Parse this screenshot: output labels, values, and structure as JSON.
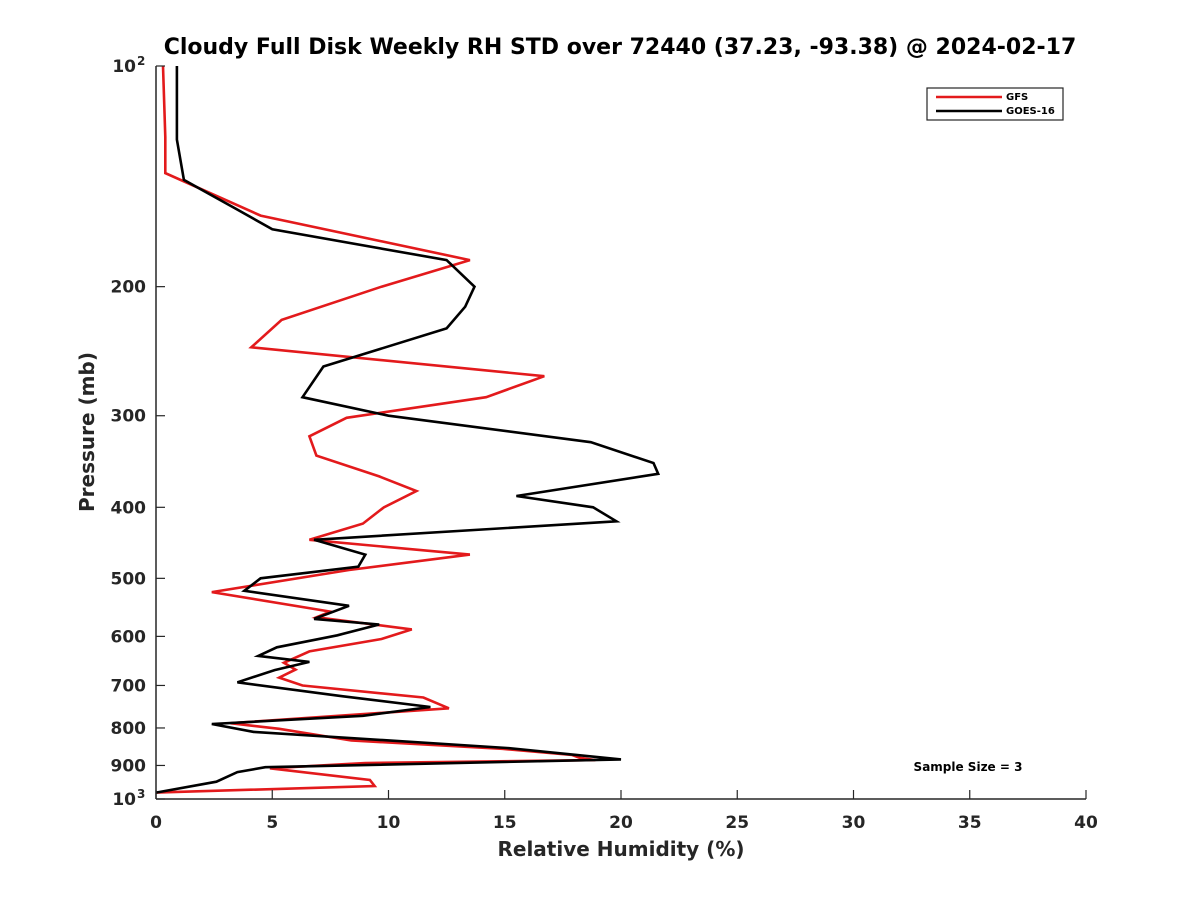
{
  "chart_data": {
    "type": "line",
    "title": "Cloudy Full Disk Weekly RH STD over 72440 (37.23, -93.38) @ 2024-02-17",
    "xlabel": "Relative Humidity (%)",
    "ylabel": "Pressure (mb)",
    "xlim": [
      0,
      40
    ],
    "ylim": [
      100,
      1000
    ],
    "yscale": "log",
    "y_reversed": true,
    "xticks": [
      0,
      5,
      10,
      15,
      20,
      25,
      30,
      35,
      40
    ],
    "yticks": [
      {
        "value": 100,
        "label": "10",
        "sup": "2"
      },
      {
        "value": 200,
        "label": "200",
        "sup": ""
      },
      {
        "value": 300,
        "label": "300",
        "sup": ""
      },
      {
        "value": 400,
        "label": "400",
        "sup": ""
      },
      {
        "value": 500,
        "label": "500",
        "sup": ""
      },
      {
        "value": 600,
        "label": "600",
        "sup": ""
      },
      {
        "value": 700,
        "label": "700",
        "sup": ""
      },
      {
        "value": 800,
        "label": "800",
        "sup": ""
      },
      {
        "value": 900,
        "label": "900",
        "sup": ""
      },
      {
        "value": 1000,
        "label": "10",
        "sup": "3"
      }
    ],
    "legend_position": "top-right",
    "annotation": "Sample Size = 3",
    "series": [
      {
        "name": "GFS",
        "color": "#e31a1c",
        "points": [
          [
            0.3,
            100
          ],
          [
            0.4,
            125
          ],
          [
            0.4,
            140
          ],
          [
            4.5,
            160
          ],
          [
            13.5,
            184
          ],
          [
            9.7,
            200
          ],
          [
            5.4,
            222
          ],
          [
            4.1,
            242
          ],
          [
            16.7,
            265
          ],
          [
            14.2,
            283
          ],
          [
            8.2,
            302
          ],
          [
            6.6,
            320
          ],
          [
            6.9,
            340
          ],
          [
            9.6,
            363
          ],
          [
            11.2,
            380
          ],
          [
            9.8,
            400
          ],
          [
            8.9,
            421
          ],
          [
            6.6,
            443
          ],
          [
            13.5,
            464
          ],
          [
            8.3,
            487
          ],
          [
            2.4,
            522
          ],
          [
            7.5,
            555
          ],
          [
            6.9,
            565
          ],
          [
            11.0,
            587
          ],
          [
            9.7,
            605
          ],
          [
            6.6,
            629
          ],
          [
            5.5,
            652
          ],
          [
            6.0,
            666
          ],
          [
            5.3,
            683
          ],
          [
            6.3,
            700
          ],
          [
            11.5,
            727
          ],
          [
            12.6,
            752
          ],
          [
            3.2,
            788
          ],
          [
            5.3,
            802
          ],
          [
            8.4,
            832
          ],
          [
            14.9,
            854
          ],
          [
            17.9,
            871
          ],
          [
            18.2,
            878
          ],
          [
            18.9,
            885
          ],
          [
            9.0,
            893
          ],
          [
            4.9,
            908
          ],
          [
            9.2,
            942
          ],
          [
            9.4,
            960
          ],
          [
            0.0,
            980
          ]
        ]
      },
      {
        "name": "GOES-16",
        "color": "#000000",
        "points": [
          [
            0.9,
            100
          ],
          [
            0.9,
            126
          ],
          [
            1.2,
            143
          ],
          [
            3.5,
            157
          ],
          [
            5.0,
            167
          ],
          [
            12.5,
            184
          ],
          [
            13.7,
            200
          ],
          [
            13.3,
            213
          ],
          [
            12.5,
            228
          ],
          [
            7.2,
            257
          ],
          [
            6.3,
            283
          ],
          [
            10.0,
            300
          ],
          [
            18.7,
            326
          ],
          [
            21.4,
            348
          ],
          [
            21.6,
            360
          ],
          [
            15.5,
            386
          ],
          [
            18.8,
            400
          ],
          [
            19.8,
            418
          ],
          [
            6.8,
            443
          ],
          [
            9.0,
            464
          ],
          [
            8.7,
            482
          ],
          [
            4.5,
            500
          ],
          [
            3.8,
            520
          ],
          [
            8.3,
            545
          ],
          [
            6.8,
            568
          ],
          [
            9.6,
            578
          ],
          [
            7.8,
            598
          ],
          [
            5.2,
            621
          ],
          [
            4.4,
            638
          ],
          [
            6.6,
            650
          ],
          [
            5.1,
            667
          ],
          [
            3.5,
            693
          ],
          [
            8.0,
            724
          ],
          [
            11.8,
            749
          ],
          [
            8.9,
            770
          ],
          [
            2.4,
            790
          ],
          [
            4.2,
            810
          ],
          [
            15.1,
            852
          ],
          [
            20.0,
            883
          ],
          [
            4.7,
            905
          ],
          [
            3.5,
            919
          ],
          [
            2.6,
            947
          ],
          [
            0.0,
            980
          ]
        ]
      }
    ]
  }
}
